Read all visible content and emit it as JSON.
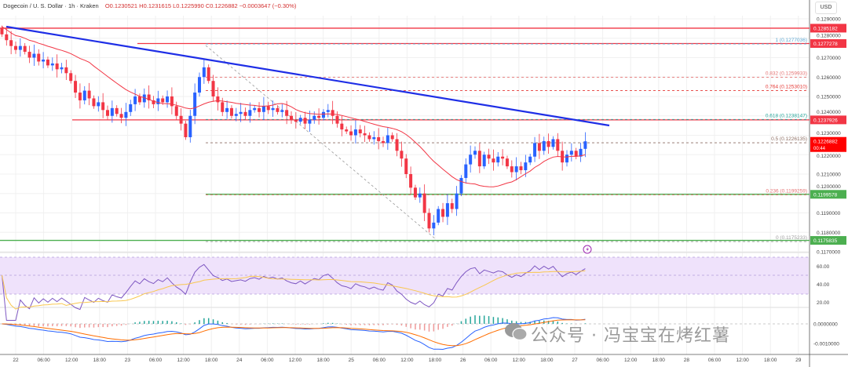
{
  "header": {
    "symbol": "Dogecoin / U. S. Dollar · 1h · Kraken",
    "ohlc": "O0.1230521  H0.1231615  L0.1225990  C0.1226882  −0.0003647 (−0.30%)",
    "currency": "USD"
  },
  "price_axis": {
    "ticks": [
      "0.1290000",
      "0.1280000",
      "0.1270000",
      "0.1260000",
      "0.1250000",
      "0.1240000",
      "0.1230000",
      "0.1220000",
      "0.1210000",
      "0.1200000",
      "0.1190000",
      "0.1180000",
      "0.1170000"
    ],
    "tick_values": [
      0.129,
      0.128,
      0.127,
      0.126,
      0.125,
      0.124,
      0.123,
      0.122,
      0.121,
      0.12,
      0.119,
      0.118,
      0.117
    ],
    "badges": [
      {
        "label": "0.1285182",
        "value": 0.1285182,
        "color": "#f23645"
      },
      {
        "label": "0.1277278",
        "value": 0.1277278,
        "color": "#f23645"
      },
      {
        "label": "0.1237926",
        "value": 0.1237926,
        "color": "#f23645"
      },
      {
        "label": "0.1199578",
        "value": 0.1199578,
        "color": "#4caf50"
      },
      {
        "label": "0.1175835",
        "value": 0.1175835,
        "color": "#4caf50"
      }
    ],
    "last_price": {
      "label": "0.1226882",
      "countdown": "00:44",
      "value": 0.1226882,
      "color": "#ff0000"
    }
  },
  "fib_levels": [
    {
      "label": "1 (0.1277036)",
      "value": 0.1277036,
      "color": "#5fa8d3"
    },
    {
      "label": "0.832 (0.1259933)",
      "value": 0.1259933,
      "color": "#e57373"
    },
    {
      "label": "0.764 (0.1253010)",
      "value": 0.125301,
      "color": "#e53935"
    },
    {
      "label": "0.618 (0.1238147)",
      "value": 0.1238147,
      "color": "#26a69a"
    },
    {
      "label": "0.5 (0.1226135)",
      "value": 0.1226135,
      "color": "#8d6e63"
    },
    {
      "label": "0.236 (0.1199259)",
      "value": 0.1199259,
      "color": "#e57373"
    },
    {
      "label": "0 (0.1175233)",
      "value": 0.1175233,
      "color": "#9e9e9e"
    }
  ],
  "rsi_axis": {
    "ticks": [
      "60.00",
      "40.00",
      "20.00"
    ],
    "values": [
      60,
      40,
      20
    ]
  },
  "macd_axis": {
    "ticks": [
      "0.0000000",
      "-0.0010000"
    ],
    "values": [
      0,
      -0.001
    ]
  },
  "time_axis": {
    "ticks": [
      "22",
      "06:00",
      "12:00",
      "18:00",
      "23",
      "06:00",
      "12:00",
      "18:00",
      "24",
      "06:00",
      "12:00",
      "18:00",
      "25",
      "06:00",
      "12:00",
      "18:00",
      "26",
      "06:00",
      "12:00",
      "18:00",
      "27",
      "06:00",
      "12:00",
      "18:00",
      "28",
      "06:00",
      "12:00",
      "18:00",
      "29"
    ]
  },
  "watermark": "公众号 · 冯宝宝在烤红薯",
  "colors": {
    "up": "#2962ff",
    "down": "#f23645",
    "ma": "#f23645",
    "trendline": "#1e2ee6",
    "rsi": "#7e57c2",
    "rsi_band": "#efe2fb",
    "macd": "#2962ff",
    "signal": "#ff6d00"
  },
  "chart_data": {
    "type": "candlestick",
    "interval": "1h",
    "first_bar": "21 21:00",
    "closes": [
      0.1282,
      0.1279,
      0.1276,
      0.1274,
      0.1276,
      0.1273,
      0.127,
      0.1272,
      0.1268,
      0.1269,
      0.1266,
      0.1267,
      0.1264,
      0.1265,
      0.1262,
      0.1258,
      0.1252,
      0.1248,
      0.1253,
      0.1249,
      0.1245,
      0.1247,
      0.1243,
      0.124,
      0.1244,
      0.1241,
      0.1239,
      0.1242,
      0.1246,
      0.125,
      0.1247,
      0.1251,
      0.1248,
      0.1246,
      0.1249,
      0.1247,
      0.125,
      0.1245,
      0.124,
      0.1236,
      0.1229,
      0.124,
      0.1252,
      0.126,
      0.1265,
      0.1258,
      0.125,
      0.1247,
      0.1242,
      0.1244,
      0.124,
      0.1241,
      0.1242,
      0.124,
      0.1243,
      0.1244,
      0.1242,
      0.1245,
      0.1243,
      0.1244,
      0.1242,
      0.1243,
      0.124,
      0.1238,
      0.1237,
      0.1239,
      0.1236,
      0.1238,
      0.124,
      0.1239,
      0.1242,
      0.1243,
      0.124,
      0.1236,
      0.1233,
      0.1232,
      0.123,
      0.1233,
      0.1231,
      0.123,
      0.1228,
      0.1229,
      0.1227,
      0.1226,
      0.123,
      0.1228,
      0.1222,
      0.1218,
      0.121,
      0.1203,
      0.1198,
      0.12,
      0.119,
      0.1182,
      0.1185,
      0.1192,
      0.1188,
      0.1195,
      0.1192,
      0.12,
      0.1208,
      0.1215,
      0.122,
      0.1222,
      0.1214,
      0.122,
      0.1218,
      0.1216,
      0.1219,
      0.1218,
      0.1214,
      0.1211,
      0.1214,
      0.1212,
      0.1216,
      0.1219,
      0.1226,
      0.1222,
      0.1227,
      0.1224,
      0.1228,
      0.1222,
      0.1216,
      0.122,
      0.1222,
      0.1219,
      0.1223,
      0.1226882
    ],
    "ylim": [
      0.1168,
      0.1295
    ],
    "overlays": [
      "moving average",
      "descending trendline",
      "horizontal support/resistance",
      "fibonacci retracement"
    ],
    "indicators": [
      "RSI",
      "MACD"
    ],
    "grid": true
  }
}
